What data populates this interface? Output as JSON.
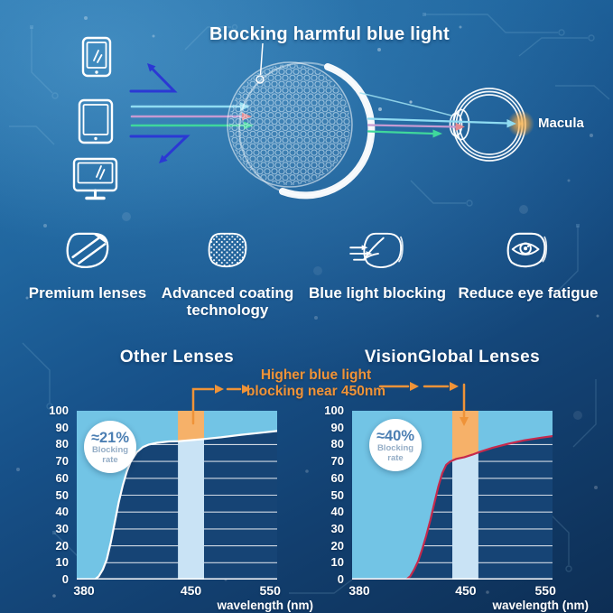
{
  "hero": {
    "title": "Blocking harmful blue light",
    "macula_label": "Macula",
    "device_icons": [
      "smartphone-icon",
      "tablet-icon",
      "monitor-icon"
    ],
    "ray_icons": [
      "reflected-ray-arrow-icon",
      "cyan-ray-arrow-icon",
      "pink-ray-arrow-icon",
      "green-ray-arrow-icon"
    ],
    "lens_icon": "honeycomb-coated-lens-icon",
    "eye_icon": "eye-cross-section-icon"
  },
  "features": [
    {
      "icon": "premium-lens-icon",
      "label": "Premium lenses"
    },
    {
      "icon": "coating-mesh-lens-icon",
      "label": "Advanced coating technology"
    },
    {
      "icon": "ray-block-lens-icon",
      "label": "Blue light blocking"
    },
    {
      "icon": "eye-comfort-lens-icon",
      "label": "Reduce eye fatigue"
    }
  ],
  "annotation": {
    "line1": "Higher blue light",
    "line2": "blocking near 450nm"
  },
  "colors": {
    "fill_light_blue": "#72c4e5",
    "band_pale_blue": "#c9e3f5",
    "highlight_orange": "#f6b169",
    "annotation_orange": "#ef9338",
    "curve_white": "#ffffff",
    "curve_red": "#c6294c",
    "plot_navy": "#164475",
    "reflect_arrow_blue": "#2b38d4",
    "ray_cyan": "#8fdcf2",
    "ray_pink": "#c59ad2",
    "ray_green": "#3fd79c",
    "badge_value_blue": "#4c7fb3",
    "macula_glow_orange": "#f5a53a"
  },
  "chart_data": [
    {
      "type": "area",
      "title": "Other Lenses",
      "xlabel": "wavelength (nm)",
      "y_unit": "percent",
      "ylim": [
        0,
        100
      ],
      "y_ticks": [
        100,
        90,
        80,
        70,
        60,
        50,
        40,
        30,
        20,
        10,
        0
      ],
      "x_ticks": [
        {
          "label": "380",
          "f": 0.036
        },
        {
          "label": "450",
          "f": 0.57
        },
        {
          "label": "550",
          "f": 0.965
        }
      ],
      "grid": true,
      "band": {
        "x0": 0.505,
        "x1": 0.635,
        "center_label": "450"
      },
      "badge": {
        "value": "≈21%",
        "line1": "Blocking",
        "line2": "rate"
      },
      "fill_color": "#72c4e5",
      "band_color": "#c9e3f5",
      "highlight_color": "#f6b169",
      "curve_color": "#ffffff",
      "series": [
        {
          "name": "light transmission curve",
          "x_unit": "fraction of plot width (380-550nm non-linear)",
          "points": [
            [
              0,
              0
            ],
            [
              0.09,
              0
            ],
            [
              0.11,
              2
            ],
            [
              0.13,
              6
            ],
            [
              0.15,
              12
            ],
            [
              0.17,
              22
            ],
            [
              0.19,
              34
            ],
            [
              0.21,
              46
            ],
            [
              0.23,
              56
            ],
            [
              0.25,
              64
            ],
            [
              0.27,
              70
            ],
            [
              0.3,
              75.5
            ],
            [
              0.33,
              78.5
            ],
            [
              0.36,
              80
            ],
            [
              0.4,
              81
            ],
            [
              0.46,
              81.8
            ],
            [
              0.51,
              82
            ],
            [
              0.58,
              82.7
            ],
            [
              0.64,
              83.3
            ],
            [
              0.72,
              84.3
            ],
            [
              0.82,
              85.8
            ],
            [
              0.92,
              87
            ],
            [
              1,
              88
            ]
          ]
        }
      ]
    },
    {
      "type": "area",
      "title": "VisionGlobal Lenses",
      "xlabel": "wavelength (nm)",
      "y_unit": "percent",
      "ylim": [
        0,
        100
      ],
      "y_ticks": [
        100,
        90,
        80,
        70,
        60,
        50,
        40,
        30,
        20,
        10,
        0
      ],
      "x_ticks": [
        {
          "label": "380",
          "f": 0.036
        },
        {
          "label": "450",
          "f": 0.567
        },
        {
          "label": "550",
          "f": 0.965
        }
      ],
      "grid": true,
      "band": {
        "x0": 0.5,
        "x1": 0.63,
        "center_label": "450"
      },
      "badge": {
        "value": "≈40%",
        "line1": "Blocking",
        "line2": "rate"
      },
      "fill_color": "#72c4e5",
      "band_color": "#c9e3f5",
      "highlight_color": "#f6b169",
      "curve_color": "#c6294c",
      "series": [
        {
          "name": "light transmission curve",
          "x_unit": "fraction of plot width (380-550nm non-linear)",
          "points": [
            [
              0,
              0
            ],
            [
              0.27,
              0
            ],
            [
              0.29,
              2
            ],
            [
              0.31,
              6
            ],
            [
              0.33,
              11
            ],
            [
              0.35,
              18
            ],
            [
              0.37,
              26
            ],
            [
              0.39,
              35
            ],
            [
              0.41,
              45
            ],
            [
              0.43,
              55
            ],
            [
              0.45,
              63
            ],
            [
              0.47,
              68
            ],
            [
              0.49,
              70
            ],
            [
              0.52,
              71.5
            ],
            [
              0.56,
              72.5
            ],
            [
              0.6,
              74
            ],
            [
              0.64,
              75.8
            ],
            [
              0.7,
              78
            ],
            [
              0.78,
              80.5
            ],
            [
              0.86,
              82.5
            ],
            [
              0.94,
              84
            ],
            [
              1,
              85
            ]
          ]
        }
      ]
    }
  ]
}
